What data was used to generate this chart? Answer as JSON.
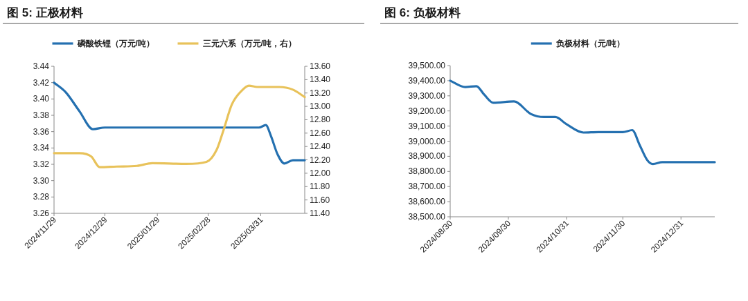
{
  "chart_data": [
    {
      "type": "line",
      "title": "图 5: 正极材料",
      "legend": "top",
      "grid": false,
      "xlim": [
        "2024-11-29",
        "2025-04-26"
      ],
      "xticks": [
        {
          "value": "2024-11-29",
          "label": "2024/11/29"
        },
        {
          "value": "2024-12-29",
          "label": "2024/12/29"
        },
        {
          "value": "2025-01-29",
          "label": "2025/01/29"
        },
        {
          "value": "2025-02-28",
          "label": "2025/02/28"
        },
        {
          "value": "2025-03-31",
          "label": "2025/03/31"
        }
      ],
      "ylim": [
        3.26,
        3.44
      ],
      "yticks": [
        {
          "value": 3.26,
          "label": "3.26"
        },
        {
          "value": 3.28,
          "label": "3.28"
        },
        {
          "value": 3.3,
          "label": "3.30"
        },
        {
          "value": 3.32,
          "label": "3.32"
        },
        {
          "value": 3.34,
          "label": "3.34"
        },
        {
          "value": 3.36,
          "label": "3.36"
        },
        {
          "value": 3.38,
          "label": "3.38"
        },
        {
          "value": 3.4,
          "label": "3.40"
        },
        {
          "value": 3.42,
          "label": "3.42"
        },
        {
          "value": 3.44,
          "label": "3.44"
        }
      ],
      "y2lim": [
        11.4,
        13.6
      ],
      "y2ticks": [
        {
          "value": 11.4,
          "label": "11.40"
        },
        {
          "value": 11.6,
          "label": "11.60"
        },
        {
          "value": 11.8,
          "label": "11.80"
        },
        {
          "value": 12,
          "label": "12.00"
        },
        {
          "value": 12.2,
          "label": "12.20"
        },
        {
          "value": 12.4,
          "label": "12.40"
        },
        {
          "value": 12.6,
          "label": "12.60"
        },
        {
          "value": 12.8,
          "label": "12.80"
        },
        {
          "value": 13,
          "label": "13.00"
        },
        {
          "value": 13.2,
          "label": "13.20"
        },
        {
          "value": 13.4,
          "label": "13.40"
        },
        {
          "value": 13.6,
          "label": "13.60"
        }
      ],
      "series": [
        {
          "name": "磷酸铁锂（万元/吨）",
          "color": "#2470b0",
          "x": [
            "2024-11-29",
            "2024-12-06",
            "2024-12-14",
            "2024-12-22",
            "2024-12-29",
            "2025-03-30",
            "2025-04-03",
            "2025-04-06",
            "2025-04-10",
            "2025-04-14",
            "2025-04-19",
            "2025-04-26"
          ],
          "values": [
            3.42,
            3.408,
            3.385,
            3.363,
            3.365,
            3.365,
            3.368,
            3.355,
            3.332,
            3.321,
            3.325,
            3.325
          ]
        },
        {
          "name": "三元六系（万元/吨，右）",
          "color": "#e8c25a",
          "axis": "y2",
          "x": [
            "2024-11-29",
            "2024-12-14",
            "2024-12-21",
            "2024-12-26",
            "2025-01-05",
            "2025-01-17",
            "2025-01-26",
            "2025-02-15",
            "2025-02-27",
            "2025-03-05",
            "2025-03-09",
            "2025-03-14",
            "2025-03-20",
            "2025-03-24",
            "2025-03-29",
            "2025-04-11",
            "2025-04-19",
            "2025-04-26"
          ],
          "values": [
            12.3,
            12.3,
            12.25,
            12.09,
            12.1,
            12.11,
            12.15,
            12.14,
            12.17,
            12.35,
            12.64,
            13.03,
            13.24,
            13.31,
            13.29,
            13.29,
            13.25,
            13.14
          ]
        }
      ]
    },
    {
      "type": "line",
      "title": "图 6: 负极材料",
      "legend": "top",
      "grid": false,
      "xlim": [
        "2024-08-30",
        "2025-01-18"
      ],
      "xticks": [
        {
          "value": "2024-08-30",
          "label": "2024/08/30"
        },
        {
          "value": "2024-09-30",
          "label": "2024/09/30"
        },
        {
          "value": "2024-10-31",
          "label": "2024/10/31"
        },
        {
          "value": "2024-11-30",
          "label": "2024/11/30"
        },
        {
          "value": "2024-12-31",
          "label": "2024/12/31"
        }
      ],
      "ylim": [
        38500,
        39500
      ],
      "yticks": [
        {
          "value": 38500,
          "label": "38,500.00"
        },
        {
          "value": 38600,
          "label": "38,600.00"
        },
        {
          "value": 38700,
          "label": "38,700.00"
        },
        {
          "value": 38800,
          "label": "38,800.00"
        },
        {
          "value": 38900,
          "label": "38,900.00"
        },
        {
          "value": 39000,
          "label": "39,000.00"
        },
        {
          "value": 39100,
          "label": "39,100.00"
        },
        {
          "value": 39200,
          "label": "39,200.00"
        },
        {
          "value": 39300,
          "label": "39,300.00"
        },
        {
          "value": 39400,
          "label": "39,400.00"
        },
        {
          "value": 39500,
          "label": "39,500.00"
        }
      ],
      "series": [
        {
          "name": "负极材料（元/吨）",
          "color": "#2470b0",
          "x": [
            "2024-08-30",
            "2024-09-07",
            "2024-09-13",
            "2024-09-17",
            "2024-09-22",
            "2024-10-03",
            "2024-10-12",
            "2024-10-19",
            "2024-10-25",
            "2024-10-31",
            "2024-11-09",
            "2024-11-17",
            "2024-11-30",
            "2024-12-05",
            "2024-12-09",
            "2024-12-13",
            "2024-12-16",
            "2024-12-21",
            "2025-01-18"
          ],
          "values": [
            39400,
            39358,
            39364,
            39310,
            39254,
            39263,
            39180,
            39160,
            39160,
            39112,
            39057,
            39060,
            39060,
            39073,
            38974,
            38875,
            38849,
            38861,
            38861
          ]
        }
      ]
    }
  ]
}
